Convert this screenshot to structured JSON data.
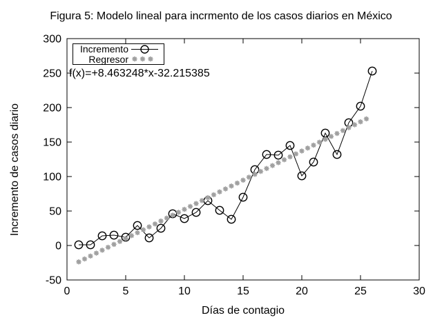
{
  "figure": {
    "title": "Figura 5: Modelo lineal para incrmento de los casos diarios en México"
  },
  "axes": {
    "x": {
      "label": "Días de contagio",
      "min": 0,
      "max": 30,
      "ticks": [
        0,
        5,
        10,
        15,
        20,
        25,
        30
      ]
    },
    "y": {
      "label": "Incremento de casos diario",
      "min": -50,
      "max": 300,
      "ticks": [
        -50,
        0,
        50,
        100,
        150,
        200,
        250,
        300
      ]
    }
  },
  "legend": {
    "entries": [
      {
        "label": "Incremento",
        "marker": "open-circle-line"
      },
      {
        "label": "Regresor",
        "marker": "gray-dots"
      }
    ]
  },
  "annotation": {
    "text": "f(x)=+8.463248*x-32.215385"
  },
  "colors": {
    "foreground": "#000000",
    "background": "#ffffff",
    "regressor": "#a0a0a0"
  },
  "chart_data": {
    "type": "line",
    "title": "Figura 5: Modelo lineal para incrmento de los casos diarios en México",
    "xlabel": "Días de contagio",
    "ylabel": "Incremento de casos diario",
    "xlim": [
      0,
      30
    ],
    "ylim": [
      -50,
      300
    ],
    "grid": false,
    "legend_position": "top-left-inside",
    "x": [
      1,
      2,
      3,
      4,
      5,
      6,
      7,
      8,
      9,
      10,
      11,
      12,
      13,
      14,
      15,
      16,
      17,
      18,
      19,
      20,
      21,
      22,
      23,
      24,
      25,
      26
    ],
    "series": [
      {
        "name": "Incremento",
        "style": "black line with open circle markers",
        "values": [
          1,
          1,
          14,
          15,
          12,
          29,
          11,
          25,
          46,
          39,
          48,
          65,
          51,
          38,
          70,
          110,
          132,
          131,
          145,
          101,
          121,
          163,
          132,
          178,
          202,
          253
        ]
      },
      {
        "name": "Regresor",
        "style": "gray dot markers",
        "fit": "linear",
        "slope": 8.463248,
        "intercept": -32.215385,
        "x_start": 1,
        "x_end": 25.5,
        "x_step": 0.5
      }
    ]
  }
}
